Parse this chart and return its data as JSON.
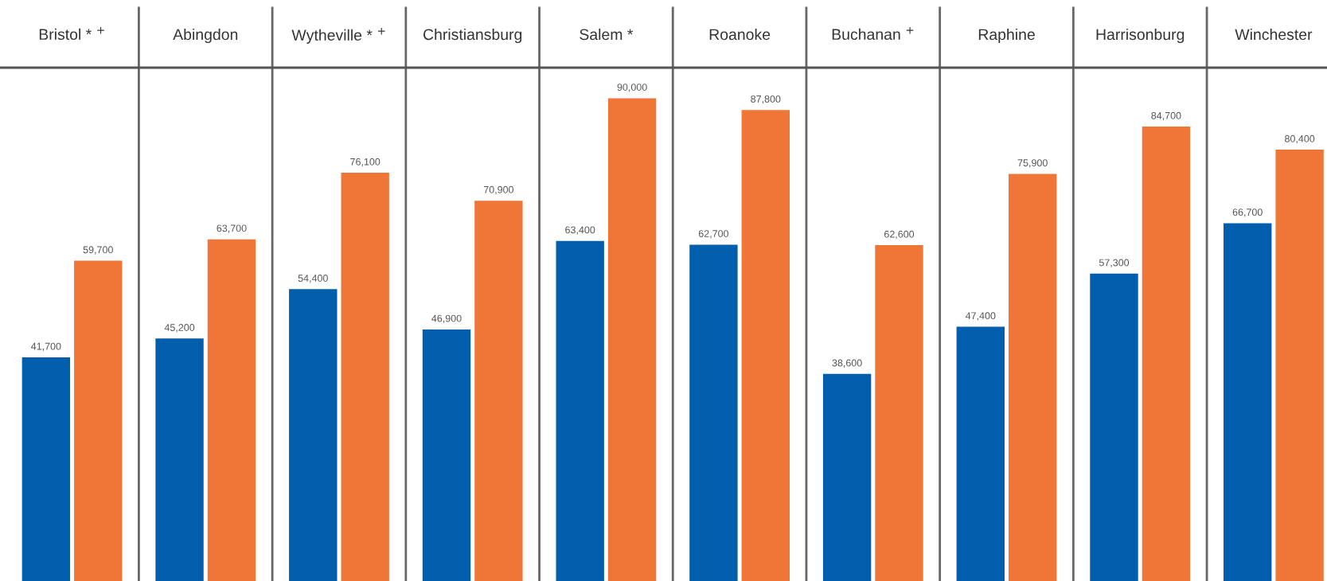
{
  "chart_data": {
    "type": "bar",
    "categories": [
      "Bristol * $^{+}$",
      "Abingdon",
      "Wytheville * $^{+}$",
      "Christiansburg",
      "Salem *",
      "Roanoke",
      "Buchanan $^{+}$",
      "Raphine",
      "Harrisonburg",
      "Winchester"
    ],
    "series": [
      {
        "color": "#005ead",
        "values": [
          41700,
          45200,
          54400,
          46900,
          63400,
          62700,
          38600,
          47400,
          57300,
          66700
        ],
        "value_labels": [
          "41,700",
          "45,200",
          "54,400",
          "46,900",
          "63,400",
          "62,700",
          "38,600",
          "47,400",
          "57,300",
          "66,700"
        ]
      },
      {
        "color": "#f07637",
        "values": [
          59700,
          63700,
          76100,
          70900,
          90000,
          87800,
          62600,
          75900,
          84700,
          80400
        ],
        "value_labels": [
          "59,700",
          "63,700",
          "76,100",
          "70,900",
          "90,000",
          "87,800",
          "62,600",
          "75,900",
          "84,700",
          "80,400"
        ]
      }
    ],
    "tick_labels": "x"
  }
}
